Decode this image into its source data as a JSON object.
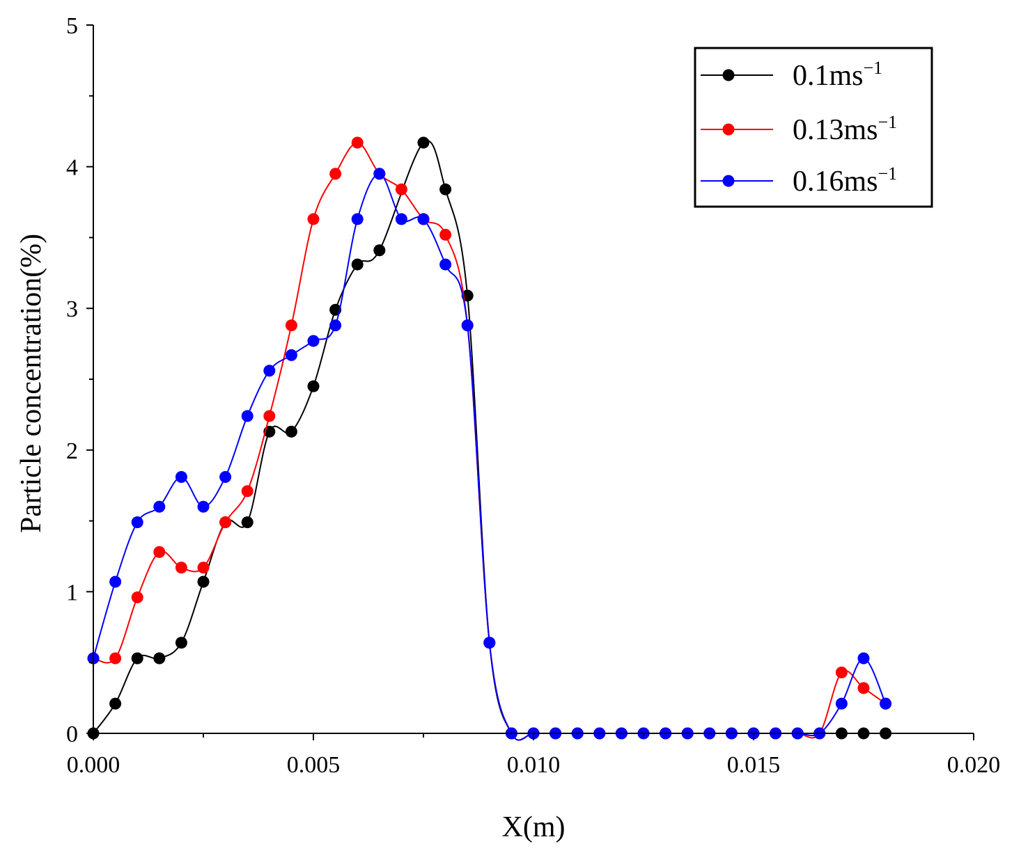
{
  "chart_data": {
    "type": "line",
    "title": "",
    "xlabel": "X(m)",
    "ylabel": "Particle concentration(%)",
    "xlim": [
      0,
      0.02
    ],
    "ylim": [
      0,
      5
    ],
    "grid": false,
    "legend_position": "top-right",
    "xticks": [
      0,
      0.005,
      0.01,
      0.015,
      0.02
    ],
    "xtick_labels": [
      "0.000",
      "0.005",
      "0.010",
      "0.015",
      "0.020"
    ],
    "yticks": [
      0,
      1,
      2,
      3,
      4,
      5
    ],
    "ytick_labels": [
      "0",
      "1",
      "2",
      "3",
      "4",
      "5"
    ],
    "series": [
      {
        "name": "0.1ms",
        "name_sup": "−1",
        "color": "#000000",
        "x": [
          0,
          0.0005,
          0.001,
          0.0015,
          0.002,
          0.0025,
          0.003,
          0.0035,
          0.004,
          0.0045,
          0.005,
          0.0055,
          0.006,
          0.0065,
          0.0075,
          0.008,
          0.0085,
          0.009,
          0.0095,
          0.01,
          0.0105,
          0.011,
          0.0115,
          0.012,
          0.0125,
          0.013,
          0.0135,
          0.014,
          0.0145,
          0.015,
          0.0155,
          0.016,
          0.0165,
          0.017,
          0.0175,
          0.018
        ],
        "values": [
          0,
          0.21,
          0.53,
          0.53,
          0.64,
          1.07,
          1.49,
          1.49,
          2.13,
          2.13,
          2.45,
          2.99,
          3.31,
          3.41,
          4.17,
          3.84,
          3.09,
          0.64,
          0,
          0,
          0,
          0,
          0,
          0,
          0,
          0,
          0,
          0,
          0,
          0,
          0,
          0,
          0,
          0,
          0,
          0
        ]
      },
      {
        "name": "0.13ms",
        "name_sup": "−1",
        "color": "#ff0000",
        "x": [
          0,
          0.0005,
          0.001,
          0.0015,
          0.002,
          0.0025,
          0.003,
          0.0035,
          0.004,
          0.0045,
          0.005,
          0.0055,
          0.006,
          0.0065,
          0.007,
          0.0075,
          0.008,
          0.0085,
          0.009,
          0.0095,
          0.01,
          0.0105,
          0.011,
          0.0115,
          0.012,
          0.0125,
          0.013,
          0.0135,
          0.014,
          0.0145,
          0.015,
          0.0155,
          0.016,
          0.0165,
          0.017,
          0.0175,
          0.018
        ],
        "values": [
          0.53,
          0.53,
          0.96,
          1.28,
          1.17,
          1.17,
          1.49,
          1.71,
          2.24,
          2.88,
          3.63,
          3.95,
          4.17,
          3.95,
          3.84,
          3.63,
          3.52,
          2.88,
          0.64,
          0,
          0,
          0,
          0,
          0,
          0,
          0,
          0,
          0,
          0,
          0,
          0,
          0,
          0,
          0,
          0.43,
          0.32,
          0.21
        ]
      },
      {
        "name": "0.16ms",
        "name_sup": "−1",
        "color": "#0000ff",
        "x": [
          0,
          0.0005,
          0.001,
          0.0015,
          0.002,
          0.0025,
          0.003,
          0.0035,
          0.004,
          0.0045,
          0.005,
          0.0055,
          0.006,
          0.0065,
          0.007,
          0.0075,
          0.008,
          0.0085,
          0.009,
          0.0095,
          0.01,
          0.0105,
          0.011,
          0.0115,
          0.012,
          0.0125,
          0.013,
          0.0135,
          0.014,
          0.0145,
          0.015,
          0.0155,
          0.016,
          0.0165,
          0.017,
          0.0175,
          0.018
        ],
        "values": [
          0.53,
          1.07,
          1.49,
          1.6,
          1.81,
          1.6,
          1.81,
          2.24,
          2.56,
          2.67,
          2.77,
          2.88,
          3.63,
          3.95,
          3.63,
          3.63,
          3.31,
          2.88,
          0.64,
          0,
          0,
          0,
          0,
          0,
          0,
          0,
          0,
          0,
          0,
          0,
          0,
          0,
          0,
          0,
          0.21,
          0.53,
          0.21
        ]
      }
    ]
  }
}
